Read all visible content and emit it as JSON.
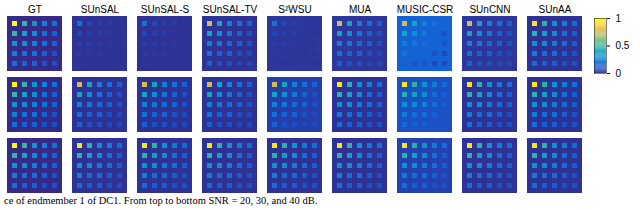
{
  "chart_data": {
    "type": "heatmap_grid",
    "columns": [
      "GT",
      "SUnSAL",
      "SUnSAL-S",
      "SUnSAL-TV",
      "S²WSU",
      "MUA",
      "MUSIC-CSR",
      "SUnCNN",
      "SUnAA"
    ],
    "caption": "ce of endmember 1 of DC1. From top to bottom SNR = 20, 30, and 40 dB.",
    "colorbar": {
      "range": [
        0,
        1
      ],
      "ticks": [
        0,
        0.5,
        1
      ]
    },
    "maps": [
      [
        {
          "background": 0,
          "values": [
            [
              1,
              0.5,
              0.33,
              0.25,
              0.2
            ],
            [
              0.5,
              0.4,
              0.3,
              0.2,
              0.15
            ],
            [
              0.33,
              0.3,
              0.25,
              0.2,
              0.15
            ],
            [
              0.25,
              0.2,
              0.2,
              0.15,
              0.1
            ],
            [
              0.2,
              0.15,
              0.15,
              0.1,
              0.1
            ]
          ]
        },
        {
          "background": 0.02,
          "values": [
            [
              0.2,
              0.08,
              0.05,
              0.04,
              0.03
            ],
            [
              0.08,
              0.06,
              0.05,
              0.03,
              0.02
            ],
            [
              0.05,
              0.05,
              0.04,
              0.03,
              0.02
            ],
            [
              0.04,
              0.03,
              0.03,
              0.02,
              0.02
            ],
            [
              0.03,
              0.02,
              0.02,
              0.02,
              0.02
            ]
          ]
        },
        {
          "background": 0.02,
          "values": [
            [
              0.2,
              0.08,
              0.05,
              0.04,
              0.03
            ],
            [
              0.08,
              0.06,
              0.05,
              0.03,
              0.02
            ],
            [
              0.05,
              0.05,
              0.04,
              0.03,
              0.02
            ],
            [
              0.04,
              0.03,
              0.03,
              0.02,
              0.02
            ],
            [
              0.03,
              0.02,
              0.02,
              0.02,
              0.02
            ]
          ]
        },
        {
          "background": 0.02,
          "values": [
            [
              0.75,
              0.4,
              0.25,
              0.2,
              0.15
            ],
            [
              0.4,
              0.3,
              0.22,
              0.15,
              0.1
            ],
            [
              0.25,
              0.22,
              0.18,
              0.15,
              0.1
            ],
            [
              0.2,
              0.15,
              0.15,
              0.1,
              0.08
            ],
            [
              0.15,
              0.1,
              0.1,
              0.08,
              0.08
            ]
          ]
        },
        {
          "background": 0.03,
          "values": [
            [
              0.2,
              0.08,
              0.05,
              0.04,
              0.03
            ],
            [
              0.08,
              0.06,
              0.05,
              0.03,
              0.02
            ],
            [
              0.05,
              0.05,
              0.04,
              0.03,
              0.02
            ],
            [
              0.04,
              0.03,
              0.03,
              0.02,
              0.02
            ],
            [
              0.03,
              0.02,
              0.02,
              0.02,
              0.02
            ]
          ]
        },
        {
          "background": 0.03,
          "values": [
            [
              0.75,
              0.4,
              0.25,
              0.2,
              0.15
            ],
            [
              0.4,
              0.3,
              0.22,
              0.15,
              0.1
            ],
            [
              0.25,
              0.22,
              0.18,
              0.15,
              0.1
            ],
            [
              0.2,
              0.15,
              0.15,
              0.1,
              0.08
            ],
            [
              0.15,
              0.1,
              0.1,
              0.08,
              0.08
            ]
          ]
        },
        {
          "background": 0.15,
          "values": [
            [
              0.75,
              0.4,
              0.25,
              0.2,
              0.15
            ],
            [
              0.4,
              0.3,
              0.22,
              0.15,
              0.1
            ],
            [
              0.25,
              0.22,
              0.18,
              0.15,
              0.1
            ],
            [
              0.2,
              0.15,
              0.15,
              0.1,
              0.08
            ],
            [
              0.15,
              0.1,
              0.1,
              0.08,
              0.08
            ]
          ]
        },
        {
          "background": 0.03,
          "values": [
            [
              0.75,
              0.4,
              0.25,
              0.2,
              0.15
            ],
            [
              0.4,
              0.3,
              0.22,
              0.15,
              0.1
            ],
            [
              0.25,
              0.22,
              0.18,
              0.15,
              0.1
            ],
            [
              0.2,
              0.15,
              0.15,
              0.1,
              0.08
            ],
            [
              0.15,
              0.1,
              0.1,
              0.08,
              0.08
            ]
          ]
        },
        {
          "background": 0.02,
          "values": [
            [
              0.95,
              0.48,
              0.32,
              0.24,
              0.19
            ],
            [
              0.48,
              0.38,
              0.29,
              0.19,
              0.14
            ],
            [
              0.32,
              0.29,
              0.24,
              0.19,
              0.14
            ],
            [
              0.24,
              0.19,
              0.19,
              0.14,
              0.1
            ],
            [
              0.19,
              0.14,
              0.14,
              0.1,
              0.1
            ]
          ]
        }
      ],
      [
        {
          "background": 0,
          "values": [
            [
              1,
              0.5,
              0.33,
              0.25,
              0.2
            ],
            [
              0.5,
              0.4,
              0.3,
              0.2,
              0.15
            ],
            [
              0.33,
              0.3,
              0.25,
              0.2,
              0.15
            ],
            [
              0.25,
              0.2,
              0.2,
              0.15,
              0.1
            ],
            [
              0.2,
              0.15,
              0.15,
              0.1,
              0.1
            ]
          ]
        },
        {
          "background": 0.02,
          "values": [
            [
              0.75,
              0.4,
              0.25,
              0.2,
              0.15
            ],
            [
              0.4,
              0.3,
              0.22,
              0.15,
              0.1
            ],
            [
              0.25,
              0.22,
              0.18,
              0.15,
              0.1
            ],
            [
              0.2,
              0.15,
              0.15,
              0.1,
              0.08
            ],
            [
              0.15,
              0.1,
              0.1,
              0.08,
              0.08
            ]
          ]
        },
        {
          "background": 0.02,
          "values": [
            [
              0.75,
              0.4,
              0.25,
              0.2,
              0.15
            ],
            [
              0.4,
              0.3,
              0.22,
              0.15,
              0.1
            ],
            [
              0.25,
              0.22,
              0.18,
              0.15,
              0.1
            ],
            [
              0.2,
              0.15,
              0.15,
              0.1,
              0.08
            ],
            [
              0.15,
              0.1,
              0.1,
              0.08,
              0.08
            ]
          ]
        },
        {
          "background": 0.02,
          "values": [
            [
              0.75,
              0.4,
              0.25,
              0.2,
              0.15
            ],
            [
              0.4,
              0.3,
              0.22,
              0.15,
              0.1
            ],
            [
              0.25,
              0.22,
              0.18,
              0.15,
              0.1
            ],
            [
              0.2,
              0.15,
              0.15,
              0.1,
              0.08
            ],
            [
              0.15,
              0.1,
              0.1,
              0.08,
              0.08
            ]
          ]
        },
        {
          "background": 0.05,
          "values": [
            [
              0.75,
              0.4,
              0.25,
              0.2,
              0.15
            ],
            [
              0.4,
              0.3,
              0.22,
              0.15,
              0.1
            ],
            [
              0.25,
              0.22,
              0.18,
              0.15,
              0.1
            ],
            [
              0.2,
              0.15,
              0.15,
              0.1,
              0.08
            ],
            [
              0.15,
              0.1,
              0.1,
              0.08,
              0.08
            ]
          ]
        },
        {
          "background": 0.02,
          "values": [
            [
              0.95,
              0.48,
              0.32,
              0.24,
              0.19
            ],
            [
              0.48,
              0.38,
              0.29,
              0.19,
              0.14
            ],
            [
              0.32,
              0.29,
              0.24,
              0.19,
              0.14
            ],
            [
              0.24,
              0.19,
              0.19,
              0.14,
              0.1
            ],
            [
              0.19,
              0.14,
              0.14,
              0.1,
              0.1
            ]
          ]
        },
        {
          "background": 0.1,
          "values": [
            [
              0.95,
              0.48,
              0.32,
              0.24,
              0.19
            ],
            [
              0.48,
              0.38,
              0.29,
              0.19,
              0.14
            ],
            [
              0.32,
              0.29,
              0.24,
              0.19,
              0.14
            ],
            [
              0.24,
              0.19,
              0.19,
              0.14,
              0.1
            ],
            [
              0.19,
              0.14,
              0.14,
              0.1,
              0.1
            ]
          ]
        },
        {
          "background": 0.02,
          "values": [
            [
              0.95,
              0.48,
              0.32,
              0.24,
              0.19
            ],
            [
              0.48,
              0.38,
              0.29,
              0.19,
              0.14
            ],
            [
              0.32,
              0.29,
              0.24,
              0.19,
              0.14
            ],
            [
              0.24,
              0.19,
              0.19,
              0.14,
              0.1
            ],
            [
              0.19,
              0.14,
              0.14,
              0.1,
              0.1
            ]
          ]
        },
        {
          "background": 0.02,
          "values": [
            [
              0.95,
              0.48,
              0.32,
              0.24,
              0.19
            ],
            [
              0.48,
              0.38,
              0.29,
              0.19,
              0.14
            ],
            [
              0.32,
              0.29,
              0.24,
              0.19,
              0.14
            ],
            [
              0.24,
              0.19,
              0.19,
              0.14,
              0.1
            ],
            [
              0.19,
              0.14,
              0.14,
              0.1,
              0.1
            ]
          ]
        }
      ],
      [
        {
          "background": 0,
          "values": [
            [
              1,
              0.5,
              0.33,
              0.25,
              0.2
            ],
            [
              0.5,
              0.4,
              0.3,
              0.2,
              0.15
            ],
            [
              0.33,
              0.3,
              0.25,
              0.2,
              0.15
            ],
            [
              0.25,
              0.2,
              0.2,
              0.15,
              0.1
            ],
            [
              0.2,
              0.15,
              0.15,
              0.1,
              0.1
            ]
          ]
        },
        {
          "background": 0.02,
          "values": [
            [
              0.95,
              0.48,
              0.32,
              0.24,
              0.19
            ],
            [
              0.48,
              0.38,
              0.29,
              0.19,
              0.14
            ],
            [
              0.32,
              0.29,
              0.24,
              0.19,
              0.14
            ],
            [
              0.24,
              0.19,
              0.19,
              0.14,
              0.1
            ],
            [
              0.19,
              0.14,
              0.14,
              0.1,
              0.1
            ]
          ]
        },
        {
          "background": 0.02,
          "values": [
            [
              0.95,
              0.48,
              0.32,
              0.24,
              0.19
            ],
            [
              0.48,
              0.38,
              0.29,
              0.19,
              0.14
            ],
            [
              0.32,
              0.29,
              0.24,
              0.19,
              0.14
            ],
            [
              0.24,
              0.19,
              0.19,
              0.14,
              0.1
            ],
            [
              0.19,
              0.14,
              0.14,
              0.1,
              0.1
            ]
          ]
        },
        {
          "background": 0.02,
          "values": [
            [
              0.95,
              0.48,
              0.32,
              0.24,
              0.19
            ],
            [
              0.48,
              0.38,
              0.29,
              0.19,
              0.14
            ],
            [
              0.32,
              0.29,
              0.24,
              0.19,
              0.14
            ],
            [
              0.24,
              0.19,
              0.19,
              0.14,
              0.1
            ],
            [
              0.19,
              0.14,
              0.14,
              0.1,
              0.1
            ]
          ]
        },
        {
          "background": 0.02,
          "values": [
            [
              0.95,
              0.48,
              0.32,
              0.24,
              0.19
            ],
            [
              0.48,
              0.38,
              0.29,
              0.19,
              0.14
            ],
            [
              0.32,
              0.29,
              0.24,
              0.19,
              0.14
            ],
            [
              0.24,
              0.19,
              0.19,
              0.14,
              0.1
            ],
            [
              0.19,
              0.14,
              0.14,
              0.1,
              0.1
            ]
          ]
        },
        {
          "background": 0.02,
          "values": [
            [
              0.95,
              0.48,
              0.32,
              0.24,
              0.19
            ],
            [
              0.48,
              0.38,
              0.29,
              0.19,
              0.14
            ],
            [
              0.32,
              0.29,
              0.24,
              0.19,
              0.14
            ],
            [
              0.24,
              0.19,
              0.19,
              0.14,
              0.1
            ],
            [
              0.19,
              0.14,
              0.14,
              0.1,
              0.1
            ]
          ]
        },
        {
          "background": 0.06,
          "values": [
            [
              0.95,
              0.48,
              0.32,
              0.24,
              0.19
            ],
            [
              0.48,
              0.38,
              0.29,
              0.19,
              0.14
            ],
            [
              0.32,
              0.29,
              0.24,
              0.19,
              0.14
            ],
            [
              0.24,
              0.19,
              0.19,
              0.14,
              0.1
            ],
            [
              0.19,
              0.14,
              0.14,
              0.1,
              0.1
            ]
          ]
        },
        {
          "background": 0.02,
          "values": [
            [
              0.95,
              0.48,
              0.32,
              0.24,
              0.19
            ],
            [
              0.48,
              0.38,
              0.29,
              0.19,
              0.14
            ],
            [
              0.32,
              0.29,
              0.24,
              0.19,
              0.14
            ],
            [
              0.24,
              0.19,
              0.19,
              0.14,
              0.1
            ],
            [
              0.19,
              0.14,
              0.14,
              0.1,
              0.1
            ]
          ]
        },
        {
          "background": 0.02,
          "values": [
            [
              0.95,
              0.48,
              0.32,
              0.24,
              0.19
            ],
            [
              0.48,
              0.38,
              0.29,
              0.19,
              0.14
            ],
            [
              0.32,
              0.29,
              0.24,
              0.19,
              0.14
            ],
            [
              0.24,
              0.19,
              0.19,
              0.14,
              0.1
            ],
            [
              0.19,
              0.14,
              0.14,
              0.1,
              0.1
            ]
          ]
        }
      ]
    ]
  }
}
